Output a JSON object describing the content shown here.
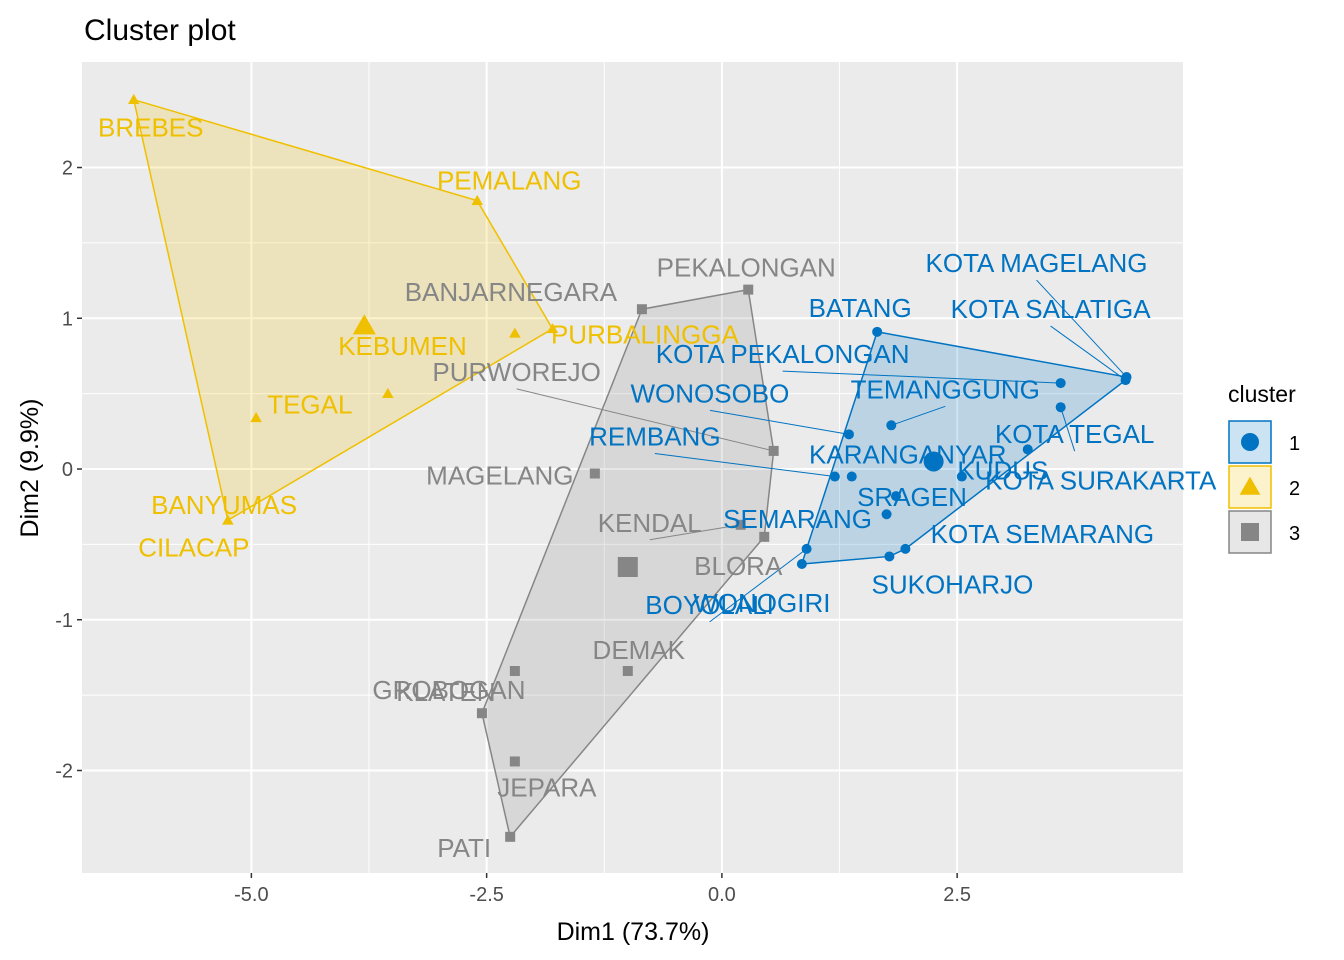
{
  "chart_data": {
    "type": "scatter",
    "title": "Cluster plot",
    "xlabel": "Dim1 (73.7%)",
    "ylabel": "Dim2 (9.9%)",
    "xlim": [
      -6.8,
      4.9
    ],
    "ylim": [
      -2.68,
      2.7
    ],
    "xticks": [
      -5.0,
      -2.5,
      0.0,
      2.5
    ],
    "xtick_labels": [
      "-5.0",
      "-2.5",
      "0.0",
      "2.5"
    ],
    "yticks": [
      -2,
      -1,
      0,
      1,
      2
    ],
    "ytick_labels": [
      "-2",
      "-1",
      "0",
      "1",
      "2"
    ],
    "grid": true,
    "legend": {
      "title": "cluster",
      "position": "right",
      "entries": [
        {
          "label": "1",
          "color": "#0073C2",
          "shape": "circle"
        },
        {
          "label": "2",
          "color": "#EFC000",
          "shape": "triangle"
        },
        {
          "label": "3",
          "color": "#868686",
          "shape": "square"
        }
      ]
    },
    "clusters": [
      {
        "name": "1",
        "color": "#0073C2",
        "shape": "circle",
        "centroid": [
          2.25,
          0.05
        ],
        "points": [
          {
            "label": "KOTA MAGELANG",
            "x": 4.3,
            "y": 0.61
          },
          {
            "label": "KOTA SALATIGA",
            "x": 4.29,
            "y": 0.59
          },
          {
            "label": "BATANG",
            "x": 1.65,
            "y": 0.91
          },
          {
            "label": "KOTA PEKALONGAN",
            "x": 3.6,
            "y": 0.57
          },
          {
            "label": "TEMANGGUNG",
            "x": 1.8,
            "y": 0.29
          },
          {
            "label": "WONOSOBO",
            "x": 1.35,
            "y": 0.23
          },
          {
            "label": "KOTA TEGAL",
            "x": 3.6,
            "y": 0.41
          },
          {
            "label": "REMBANG",
            "x": 1.2,
            "y": -0.05
          },
          {
            "label": "KARANGANYAR",
            "x": 1.38,
            "y": -0.05
          },
          {
            "label": "KUDUS",
            "x": 2.55,
            "y": -0.05
          },
          {
            "label": "KOTA SURAKARTA",
            "x": 3.25,
            "y": 0.13
          },
          {
            "label": "BOYOLALI",
            "x": 0.9,
            "y": -0.53
          },
          {
            "label": "KOTA SEMARANG",
            "x": 1.95,
            "y": -0.53
          },
          {
            "label": "SRAGEN",
            "x": 1.85,
            "y": -0.18
          },
          {
            "label": "SEMARANG",
            "x": 1.75,
            "y": -0.3
          },
          {
            "label": "SUKOHARJO",
            "x": 1.78,
            "y": -0.58
          },
          {
            "label": "WONOGIRI",
            "x": 0.85,
            "y": -0.63
          }
        ]
      },
      {
        "name": "2",
        "color": "#EFC000",
        "shape": "triangle",
        "centroid": [
          -3.8,
          0.95
        ],
        "points": [
          {
            "label": "BREBES",
            "x": -6.25,
            "y": 2.45
          },
          {
            "label": "PEMALANG",
            "x": -2.6,
            "y": 1.78
          },
          {
            "label": "PURBALINGGA",
            "x": -2.2,
            "y": 0.9
          },
          {
            "label": "KEBUMEN",
            "x": -1.8,
            "y": 0.93
          },
          {
            "label": "TEGAL",
            "x": -3.55,
            "y": 0.5
          },
          {
            "label": "BANYUMAS",
            "x": -4.95,
            "y": 0.34
          },
          {
            "label": "CILACAP",
            "x": -5.25,
            "y": -0.34
          }
        ]
      },
      {
        "name": "3",
        "color": "#868686",
        "shape": "square",
        "centroid": [
          -1.0,
          -0.65
        ],
        "points": [
          {
            "label": "PEKALONGAN",
            "x": 0.28,
            "y": 1.19
          },
          {
            "label": "BANJARNEGARA",
            "x": -0.85,
            "y": 1.06
          },
          {
            "label": "PURWOREJO",
            "x": 0.55,
            "y": 0.12
          },
          {
            "label": "MAGELANG",
            "x": -1.35,
            "y": -0.03
          },
          {
            "label": "KENDAL",
            "x": 0.2,
            "y": -0.37
          },
          {
            "label": "BLORA",
            "x": 0.45,
            "y": -0.45
          },
          {
            "label": "DEMAK",
            "x": -1.0,
            "y": -1.34
          },
          {
            "label": "KLATEN",
            "x": -2.2,
            "y": -1.34
          },
          {
            "label": "GROBOGAN",
            "x": -2.55,
            "y": -1.62
          },
          {
            "label": "JEPARA",
            "x": -2.2,
            "y": -1.94
          },
          {
            "label": "PATI",
            "x": -2.25,
            "y": -2.44
          }
        ]
      }
    ]
  }
}
